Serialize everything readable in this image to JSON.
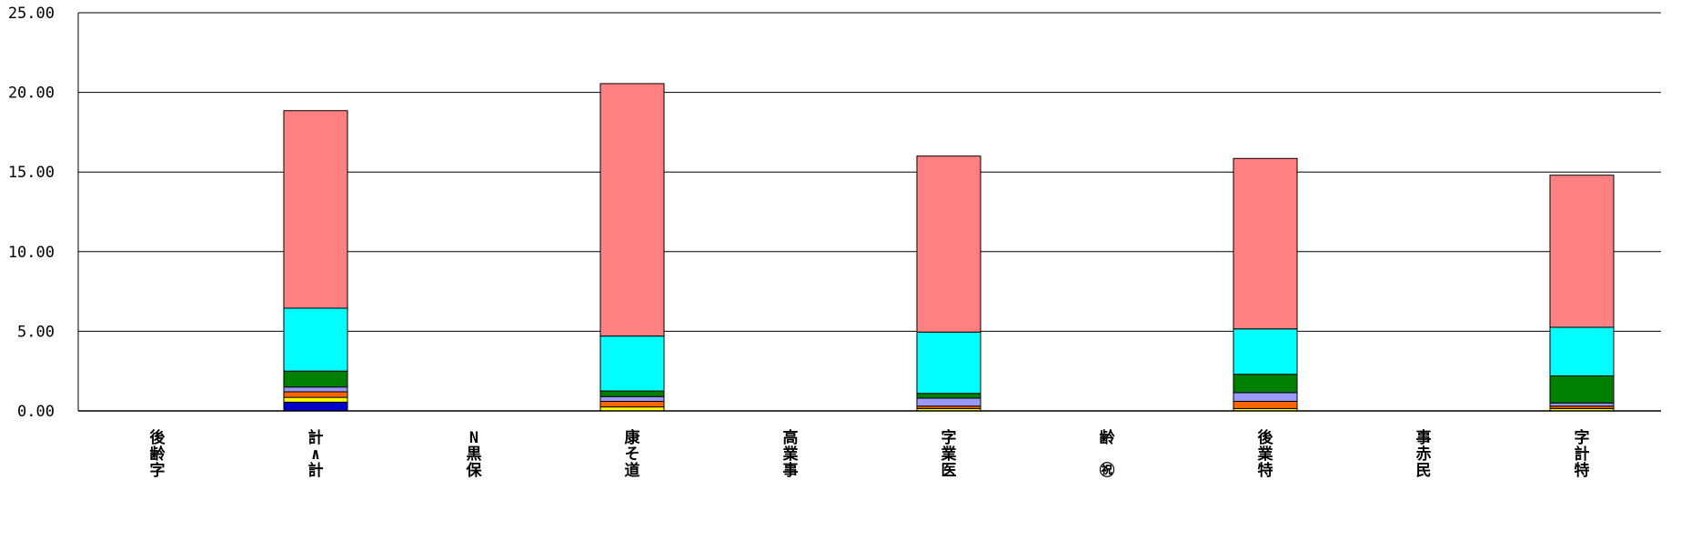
{
  "chart_data": {
    "type": "bar",
    "stacked": true,
    "title": "",
    "xlabel": "",
    "ylabel": "",
    "ylim": [
      0,
      25
    ],
    "y_ticks": [
      "0.00",
      "5.00",
      "10.00",
      "15.00",
      "20.00",
      "25.00"
    ],
    "y_tick_values": [
      0,
      5,
      10,
      15,
      20,
      25
    ],
    "grid": true,
    "legend": "none",
    "categories": [
      [
        "後",
        "齢",
        "字"
      ],
      [
        "計",
        "∧",
        "計"
      ],
      [
        "N",
        "黒",
        "保"
      ],
      [
        "康",
        "そ",
        "道"
      ],
      [
        "高",
        "業",
        "事"
      ],
      [
        "字",
        "業",
        "医"
      ],
      [
        "齢",
        "",
        "㊗"
      ],
      [
        "後",
        "業",
        "特"
      ],
      [
        "事",
        "赤",
        "民"
      ],
      [
        "字",
        "計",
        "特"
      ]
    ],
    "series": [
      {
        "color": "#0000cc",
        "values": [
          0,
          0.55,
          0,
          0,
          0,
          0,
          0,
          0,
          0,
          0
        ]
      },
      {
        "color": "#ffff00",
        "values": [
          0,
          0.3,
          0,
          0.25,
          0,
          0.15,
          0,
          0.15,
          0,
          0.15
        ]
      },
      {
        "color": "#ff6600",
        "values": [
          0,
          0.35,
          0,
          0.35,
          0,
          0.15,
          0,
          0.45,
          0,
          0.15
        ]
      },
      {
        "color": "#9999ff",
        "values": [
          0,
          0.3,
          0,
          0.3,
          0,
          0.5,
          0,
          0.55,
          0,
          0.2
        ]
      },
      {
        "color": "#008000",
        "values": [
          0,
          1.0,
          0,
          0.35,
          0,
          0.3,
          0,
          1.15,
          0,
          1.7
        ]
      },
      {
        "color": "#00ffff",
        "values": [
          0,
          3.95,
          0,
          3.45,
          0,
          3.85,
          0,
          2.85,
          0,
          3.05
        ]
      },
      {
        "color": "#ff8080",
        "values": [
          0,
          12.4,
          0,
          15.85,
          0,
          11.05,
          0,
          10.7,
          0,
          9.55
        ]
      }
    ]
  }
}
